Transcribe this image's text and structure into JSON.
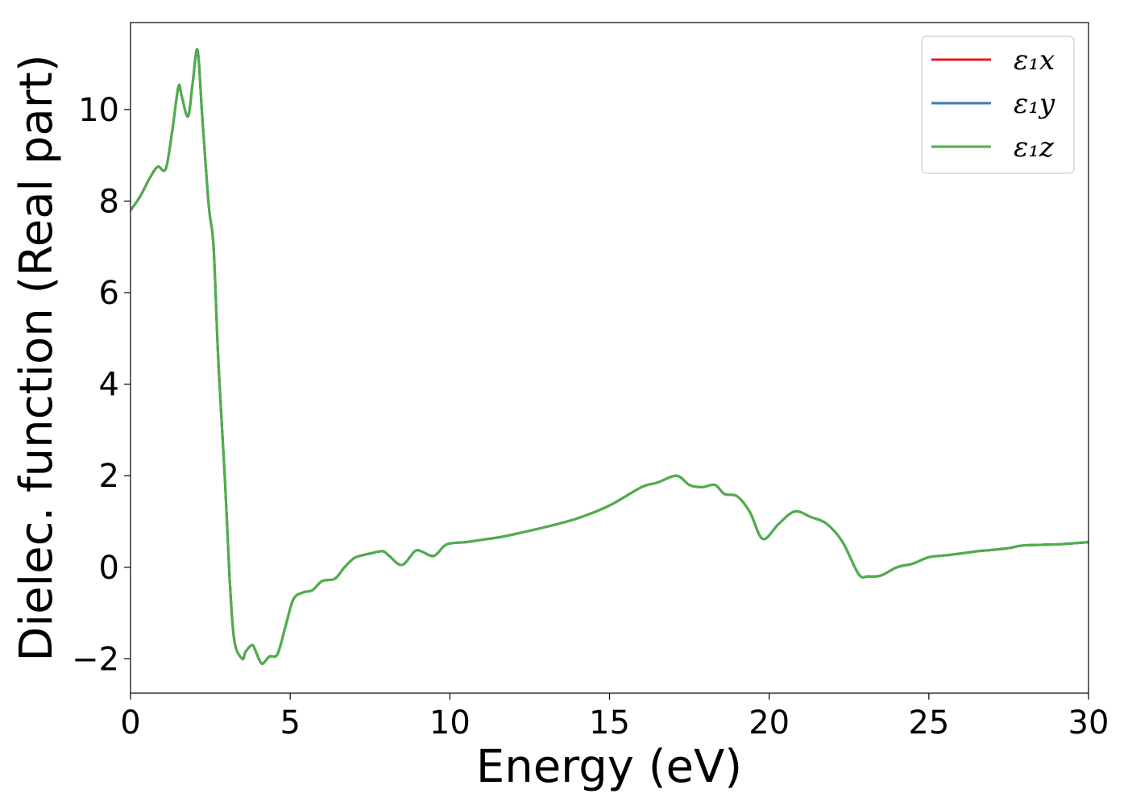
{
  "chart_data": {
    "type": "line",
    "xlabel": "Energy (eV)",
    "ylabel": "Dielec. function (Real part)",
    "xlim": [
      0,
      30
    ],
    "ylim": [
      -2.75,
      11.9
    ],
    "xticks": [
      0,
      5,
      10,
      15,
      20,
      25,
      30
    ],
    "xtick_labels": [
      "0",
      "5",
      "10",
      "15",
      "20",
      "25",
      "30"
    ],
    "yticks": [
      -2,
      0,
      2,
      4,
      6,
      8,
      10
    ],
    "ytick_labels": [
      "−2",
      "0",
      "2",
      "4",
      "6",
      "8",
      "10"
    ],
    "grid": false,
    "legend_position": "top-right",
    "legend_labels": [
      "ε₁x",
      "ε₁y",
      "ε₁z"
    ],
    "series_colors": [
      "#e41a1c",
      "#377eb8",
      "#4daf4a"
    ],
    "x": [
      0,
      0.3,
      0.6,
      0.85,
      1.1,
      1.3,
      1.5,
      1.6,
      1.8,
      1.95,
      2.1,
      2.25,
      2.45,
      2.6,
      2.75,
      2.95,
      3.1,
      3.25,
      3.5,
      3.6,
      3.8,
      3.9,
      4.05,
      4.15,
      4.35,
      4.6,
      4.85,
      5.1,
      5.4,
      5.7,
      6.0,
      6.4,
      6.7,
      7.0,
      7.2,
      7.5,
      7.9,
      8.1,
      8.5,
      8.9,
      9.1,
      9.5,
      9.9,
      10.5,
      11.0,
      11.5,
      12.0,
      13.0,
      14.0,
      15.0,
      16.0,
      16.5,
      17.1,
      17.5,
      17.9,
      18.3,
      18.6,
      19.0,
      19.4,
      19.8,
      20.3,
      20.8,
      21.3,
      21.8,
      22.3,
      22.8,
      23.1,
      23.5,
      24.0,
      24.5,
      25.0,
      25.5,
      26.0,
      26.5,
      27.0,
      27.5,
      28.0,
      29.0,
      30.0
    ],
    "series": [
      {
        "name": "ε₁x",
        "values": [
          7.8,
          8.1,
          8.5,
          8.75,
          8.7,
          9.5,
          10.5,
          10.3,
          9.85,
          10.6,
          11.3,
          9.8,
          7.9,
          7.0,
          4.5,
          2.0,
          -0.2,
          -1.6,
          -2.0,
          -1.85,
          -1.7,
          -1.8,
          -2.05,
          -2.1,
          -1.95,
          -1.9,
          -1.3,
          -0.7,
          -0.55,
          -0.5,
          -0.3,
          -0.25,
          0.0,
          0.2,
          0.25,
          0.3,
          0.35,
          0.25,
          0.05,
          0.35,
          0.35,
          0.25,
          0.5,
          0.55,
          0.6,
          0.65,
          0.72,
          0.88,
          1.07,
          1.35,
          1.75,
          1.85,
          2.0,
          1.8,
          1.75,
          1.8,
          1.6,
          1.55,
          1.2,
          0.62,
          0.95,
          1.22,
          1.1,
          0.95,
          0.55,
          -0.15,
          -0.2,
          -0.18,
          0.0,
          0.08,
          0.22,
          0.26,
          0.3,
          0.35,
          0.38,
          0.42,
          0.48,
          0.5,
          0.55
        ]
      },
      {
        "name": "ε₁y",
        "values": [
          7.8,
          8.1,
          8.5,
          8.75,
          8.7,
          9.5,
          10.5,
          10.3,
          9.85,
          10.6,
          11.3,
          9.8,
          7.9,
          7.0,
          4.5,
          2.0,
          -0.2,
          -1.6,
          -2.0,
          -1.85,
          -1.7,
          -1.8,
          -2.05,
          -2.1,
          -1.95,
          -1.9,
          -1.3,
          -0.7,
          -0.55,
          -0.5,
          -0.3,
          -0.25,
          0.0,
          0.2,
          0.25,
          0.3,
          0.35,
          0.25,
          0.05,
          0.35,
          0.35,
          0.25,
          0.5,
          0.55,
          0.6,
          0.65,
          0.72,
          0.88,
          1.07,
          1.35,
          1.75,
          1.85,
          2.0,
          1.8,
          1.75,
          1.8,
          1.6,
          1.55,
          1.2,
          0.62,
          0.95,
          1.22,
          1.1,
          0.95,
          0.55,
          -0.15,
          -0.2,
          -0.18,
          0.0,
          0.08,
          0.22,
          0.26,
          0.3,
          0.35,
          0.38,
          0.42,
          0.48,
          0.5,
          0.55
        ]
      },
      {
        "name": "ε₁z",
        "values": [
          7.8,
          8.1,
          8.5,
          8.75,
          8.7,
          9.5,
          10.5,
          10.3,
          9.85,
          10.6,
          11.3,
          9.8,
          7.9,
          7.0,
          4.5,
          2.0,
          -0.2,
          -1.6,
          -2.0,
          -1.85,
          -1.7,
          -1.8,
          -2.05,
          -2.1,
          -1.95,
          -1.9,
          -1.3,
          -0.7,
          -0.55,
          -0.5,
          -0.3,
          -0.25,
          0.0,
          0.2,
          0.25,
          0.3,
          0.35,
          0.25,
          0.05,
          0.35,
          0.35,
          0.25,
          0.5,
          0.55,
          0.6,
          0.65,
          0.72,
          0.88,
          1.07,
          1.35,
          1.75,
          1.85,
          2.0,
          1.8,
          1.75,
          1.8,
          1.6,
          1.55,
          1.2,
          0.62,
          0.95,
          1.22,
          1.1,
          0.95,
          0.55,
          -0.15,
          -0.2,
          -0.18,
          0.0,
          0.08,
          0.22,
          0.26,
          0.3,
          0.35,
          0.38,
          0.42,
          0.48,
          0.5,
          0.55
        ]
      }
    ]
  }
}
